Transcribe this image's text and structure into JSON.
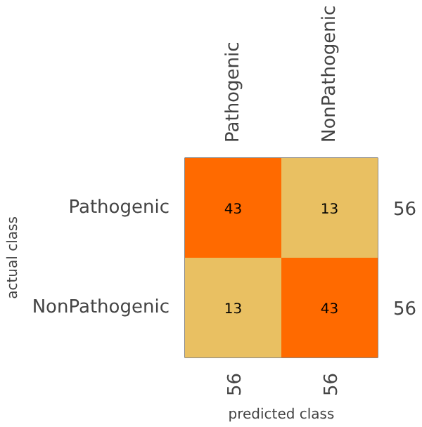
{
  "chart_data": {
    "type": "heatmap",
    "xlabel": "predicted class",
    "ylabel": "actual class",
    "categories": [
      "Pathogenic",
      "NonPathogenic"
    ],
    "y_categories": [
      "Pathogenic",
      "NonPathogenic"
    ],
    "y2_categories": [
      "56",
      "56"
    ],
    "cells": [
      [
        43,
        13
      ],
      [
        13,
        43
      ]
    ],
    "colors": [
      "#e9c062",
      "#ff6a00"
    ],
    "data_labels": true,
    "annotations": [
      "56",
      "56"
    ]
  }
}
